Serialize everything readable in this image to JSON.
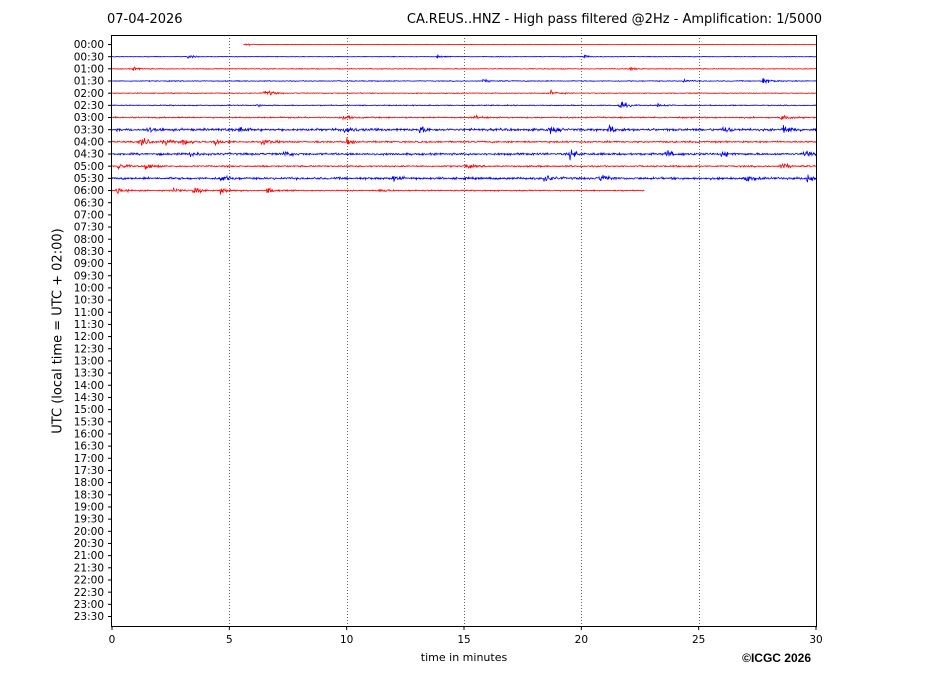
{
  "header": {
    "date": "07-04-2026",
    "title": "CA.REUS..HNZ - High pass filtered @2Hz - Amplification: 1/5000"
  },
  "footer": {
    "copyright": "©ICGC 2026"
  },
  "colors": {
    "trace_odd": "#ff0000",
    "trace_even": "#0000ff",
    "axis": "#000000",
    "grid": "#000000"
  },
  "chart_data": {
    "type": "line",
    "title": "CA.REUS..HNZ - High pass filtered @2Hz - Amplification: 1/5000",
    "xlabel": "time in minutes",
    "ylabel": "UTC (local time = UTC + 02:00)",
    "xlim": [
      0,
      30
    ],
    "x_ticks": [
      0,
      5,
      10,
      15,
      20,
      25,
      30
    ],
    "x_tick_labels": [
      "0",
      "5",
      "10",
      "15",
      "20",
      "25",
      "30"
    ],
    "vertical_grid": true,
    "y_tick_labels": [
      "00:00",
      "00:30",
      "01:00",
      "01:30",
      "02:00",
      "02:30",
      "03:00",
      "03:30",
      "04:00",
      "04:30",
      "05:00",
      "05:30",
      "06:00",
      "06:30",
      "07:00",
      "07:30",
      "08:00",
      "08:30",
      "09:00",
      "09:30",
      "10:00",
      "10:30",
      "11:00",
      "11:30",
      "12:00",
      "12:30",
      "13:00",
      "13:30",
      "14:00",
      "14:30",
      "15:00",
      "15:30",
      "16:00",
      "16:30",
      "17:00",
      "17:30",
      "18:00",
      "18:30",
      "19:00",
      "19:30",
      "20:00",
      "20:30",
      "21:00",
      "21:30",
      "22:00",
      "22:30",
      "23:00",
      "23:30"
    ],
    "traces": [
      {
        "row": "00:00",
        "color": "red",
        "start_min": 5.6,
        "end_min": 30,
        "noise": 0.25,
        "bursts": [
          {
            "t": 5.7,
            "amp": 1.2
          }
        ]
      },
      {
        "row": "00:30",
        "color": "blue",
        "start_min": 0,
        "end_min": 30,
        "noise": 0.45,
        "bursts": [
          {
            "t": 3.2,
            "amp": 1.0
          },
          {
            "t": 13.8,
            "amp": 1.0
          },
          {
            "t": 20.1,
            "amp": 0.9
          }
        ]
      },
      {
        "row": "01:00",
        "color": "red",
        "start_min": 0,
        "end_min": 30,
        "noise": 0.55,
        "bursts": [
          {
            "t": 0.9,
            "amp": 1.1
          },
          {
            "t": 22.1,
            "amp": 0.9
          }
        ]
      },
      {
        "row": "01:30",
        "color": "blue",
        "start_min": 0,
        "end_min": 30,
        "noise": 0.6,
        "bursts": [
          {
            "t": 15.8,
            "amp": 1.1
          },
          {
            "t": 24.3,
            "amp": 1.2
          },
          {
            "t": 27.7,
            "amp": 2.2
          }
        ]
      },
      {
        "row": "02:00",
        "color": "red",
        "start_min": 0,
        "end_min": 30,
        "noise": 0.55,
        "bursts": [
          {
            "t": 6.5,
            "amp": 3.0
          },
          {
            "t": 18.7,
            "amp": 1.6
          }
        ]
      },
      {
        "row": "02:30",
        "color": "blue",
        "start_min": 0,
        "end_min": 30,
        "noise": 0.65,
        "bursts": [
          {
            "t": 6.1,
            "amp": 1.0
          },
          {
            "t": 21.6,
            "amp": 3.4
          },
          {
            "t": 23.2,
            "amp": 1.4
          }
        ]
      },
      {
        "row": "03:00",
        "color": "red",
        "start_min": 0,
        "end_min": 30,
        "noise": 0.9,
        "bursts": [
          {
            "t": 9.8,
            "amp": 2.0
          },
          {
            "t": 15.4,
            "amp": 1.2
          },
          {
            "t": 28.5,
            "amp": 2.2
          }
        ]
      },
      {
        "row": "03:30",
        "color": "blue",
        "start_min": 0,
        "end_min": 30,
        "noise": 1.6,
        "bursts": [
          {
            "t": 1.5,
            "amp": 2.0
          },
          {
            "t": 5.4,
            "amp": 2.0
          },
          {
            "t": 9.9,
            "amp": 3.0
          },
          {
            "t": 13.1,
            "amp": 2.2
          },
          {
            "t": 18.6,
            "amp": 2.6
          },
          {
            "t": 21.2,
            "amp": 2.8
          },
          {
            "t": 26.0,
            "amp": 2.5
          },
          {
            "t": 28.6,
            "amp": 3.6
          }
        ]
      },
      {
        "row": "04:00",
        "color": "red",
        "start_min": 0,
        "end_min": 30,
        "noise": 1.1,
        "bursts": [
          {
            "t": 1.2,
            "amp": 3.6
          },
          {
            "t": 2.2,
            "amp": 2.6
          },
          {
            "t": 3.0,
            "amp": 2.2
          },
          {
            "t": 4.3,
            "amp": 2.6
          },
          {
            "t": 6.4,
            "amp": 2.4
          },
          {
            "t": 10.0,
            "amp": 2.8
          }
        ]
      },
      {
        "row": "04:30",
        "color": "blue",
        "start_min": 0,
        "end_min": 30,
        "noise": 1.4,
        "bursts": [
          {
            "t": 3.3,
            "amp": 1.8
          },
          {
            "t": 7.3,
            "amp": 1.6
          },
          {
            "t": 19.5,
            "amp": 3.0
          },
          {
            "t": 23.6,
            "amp": 2.6
          },
          {
            "t": 26.0,
            "amp": 2.2
          },
          {
            "t": 29.5,
            "amp": 2.8
          }
        ]
      },
      {
        "row": "05:00",
        "color": "red",
        "start_min": 0,
        "end_min": 30,
        "noise": 1.0,
        "bursts": [
          {
            "t": 0.2,
            "amp": 2.6
          },
          {
            "t": 1.4,
            "amp": 2.2
          },
          {
            "t": 15.0,
            "amp": 1.6
          },
          {
            "t": 28.5,
            "amp": 2.4
          }
        ]
      },
      {
        "row": "05:30",
        "color": "blue",
        "start_min": 0,
        "end_min": 30,
        "noise": 1.5,
        "bursts": [
          {
            "t": 4.6,
            "amp": 2.4
          },
          {
            "t": 12.0,
            "amp": 2.2
          },
          {
            "t": 18.4,
            "amp": 3.0
          },
          {
            "t": 20.8,
            "amp": 2.8
          },
          {
            "t": 27.0,
            "amp": 2.2
          },
          {
            "t": 29.6,
            "amp": 2.8
          }
        ]
      },
      {
        "row": "06:00",
        "color": "red",
        "start_min": 0,
        "end_min": 22.7,
        "noise": 0.8,
        "bursts": [
          {
            "t": 0.2,
            "amp": 3.0
          },
          {
            "t": 2.6,
            "amp": 2.2
          },
          {
            "t": 3.5,
            "amp": 2.6
          },
          {
            "t": 4.6,
            "amp": 2.8
          },
          {
            "t": 6.6,
            "amp": 2.2
          },
          {
            "t": 11.4,
            "amp": 1.6
          }
        ]
      }
    ]
  }
}
